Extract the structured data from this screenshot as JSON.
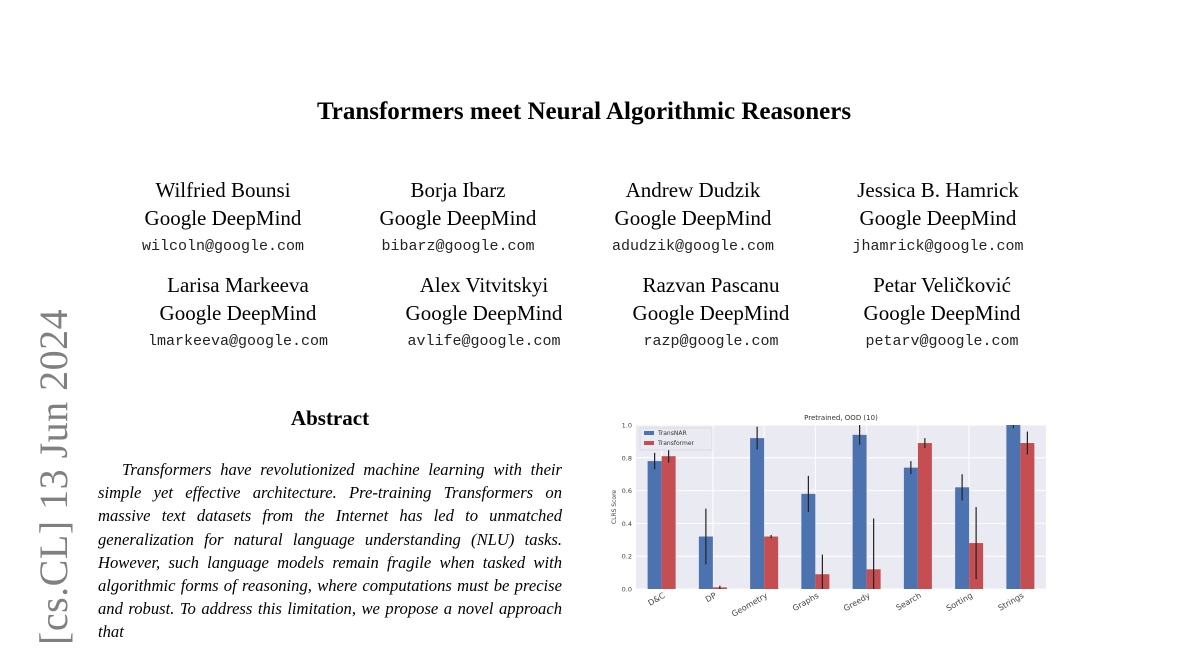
{
  "paper": {
    "title": "Transformers meet Neural Algorithmic Reasoners",
    "authors": [
      {
        "name": "Wilfried Bounsi",
        "affiliation": "Google DeepMind",
        "email": "wilcoln@google.com"
      },
      {
        "name": "Borja Ibarz",
        "affiliation": "Google DeepMind",
        "email": "bibarz@google.com"
      },
      {
        "name": "Andrew Dudzik",
        "affiliation": "Google DeepMind",
        "email": "adudzik@google.com"
      },
      {
        "name": "Jessica B. Hamrick",
        "affiliation": "Google DeepMind",
        "email": "jhamrick@google.com"
      },
      {
        "name": "Larisa Markeeva",
        "affiliation": "Google DeepMind",
        "email": "lmarkeeva@google.com"
      },
      {
        "name": "Alex Vitvitskyi",
        "affiliation": "Google DeepMind",
        "email": "avlife@google.com"
      },
      {
        "name": "Razvan Pascanu",
        "affiliation": "Google DeepMind",
        "email": "razp@google.com"
      },
      {
        "name": "Petar Veličković",
        "affiliation": "Google DeepMind",
        "email": "petarv@google.com"
      }
    ],
    "arxiv_stamp": "[cs.CL]  13 Jun 2024",
    "abstract_heading": "Abstract",
    "abstract_text": "Transformers have revolutionized machine learning with their simple yet effective architecture. Pre-training Transformers on massive text datasets from the Internet has led to unmatched generalization for natural language understanding (NLU) tasks. However, such language models remain fragile when tasked with algorithmic forms of reasoning, where computations must be precise and robust. To address this limitation, we propose a novel approach that"
  },
  "chart_data": {
    "type": "bar",
    "title": "Pretrained, OOD (10)",
    "xlabel": "",
    "ylabel": "CLRS Score",
    "ylim": [
      0,
      1.0
    ],
    "yticks": [
      "0.0",
      "0.2",
      "0.4",
      "0.6",
      "0.8",
      "1.0"
    ],
    "grid": true,
    "legend_position": "top-left",
    "categories": [
      "D&C",
      "DP",
      "Geometry",
      "Graphs",
      "Greedy",
      "Search",
      "Sorting",
      "Strings"
    ],
    "series": [
      {
        "name": "TransNAR",
        "color": "#4c72b0",
        "values": [
          0.78,
          0.32,
          0.92,
          0.58,
          0.94,
          0.74,
          0.62,
          1.0
        ],
        "err": [
          0.05,
          0.17,
          0.07,
          0.11,
          0.06,
          0.04,
          0.08,
          0.02
        ]
      },
      {
        "name": "Transformer",
        "color": "#c44e52",
        "values": [
          0.81,
          0.01,
          0.32,
          0.09,
          0.12,
          0.89,
          0.28,
          0.89
        ],
        "err": [
          0.04,
          0.01,
          0.01,
          0.12,
          0.31,
          0.03,
          0.22,
          0.07
        ]
      }
    ]
  }
}
